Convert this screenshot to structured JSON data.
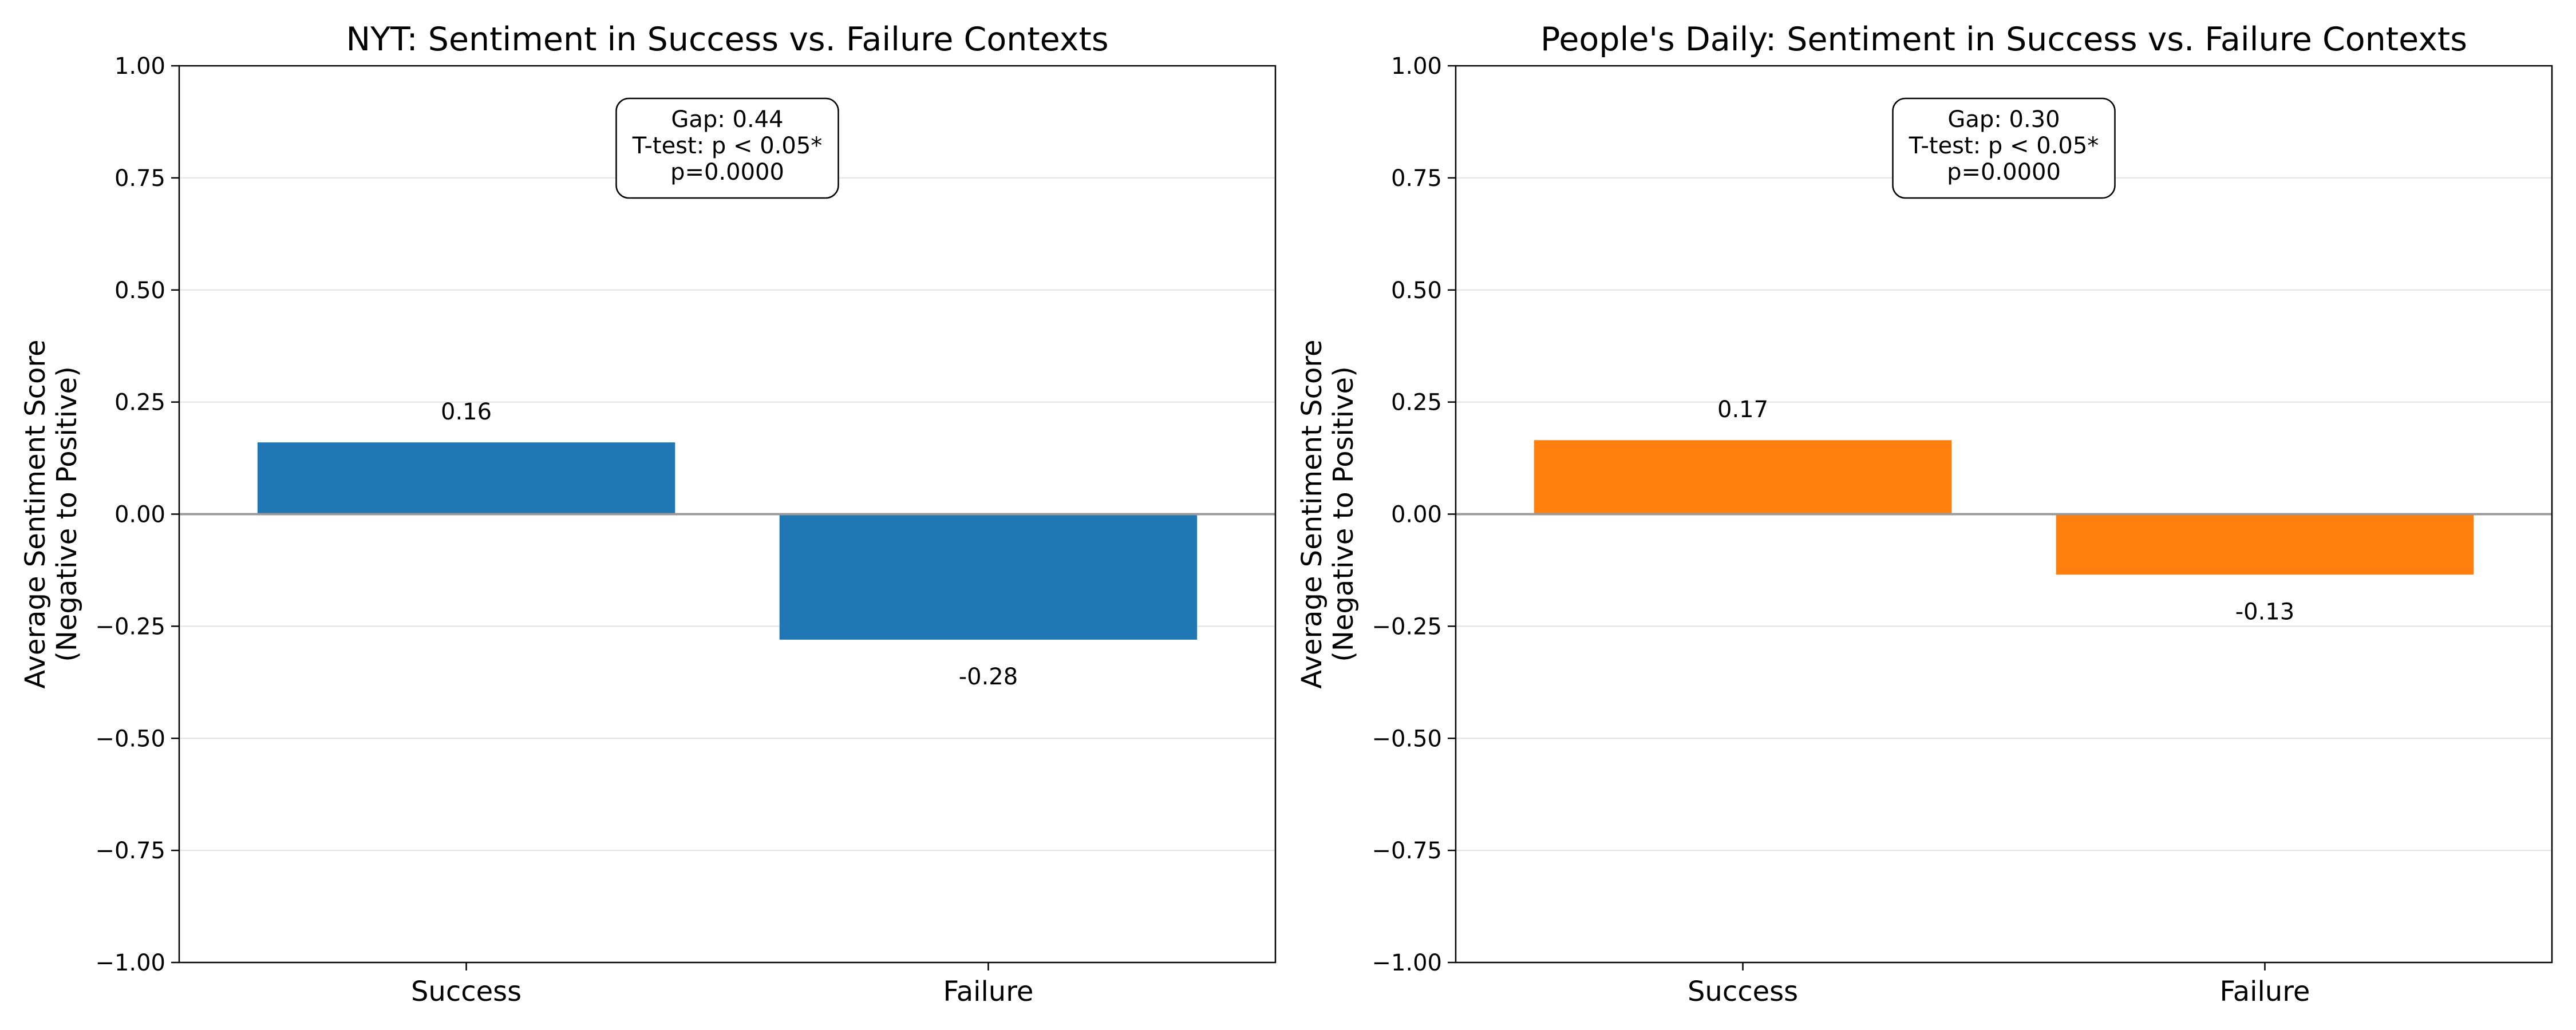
{
  "chart_data": [
    {
      "type": "bar",
      "title": "NYT: Sentiment in Success vs. Failure Contexts",
      "categories": [
        "Success",
        "Failure"
      ],
      "values": [
        0.16,
        -0.28
      ],
      "data_labels": [
        "0.16",
        "-0.28"
      ],
      "ylabel_line1": "Average Sentiment Score",
      "ylabel_line2": "(Negative to Positive)",
      "ylim": [
        -1.0,
        1.0
      ],
      "yticks": [
        -1.0,
        -0.75,
        -0.5,
        -0.25,
        0.0,
        0.25,
        0.5,
        0.75,
        1.0
      ],
      "ytick_labels": [
        "−1.00",
        "−0.75",
        "−0.50",
        "−0.25",
        "0.00",
        "0.25",
        "0.50",
        "0.75",
        "1.00"
      ],
      "grid": "y",
      "color": "#1f77b4",
      "annotation": [
        "Gap: 0.44",
        "T-test: p < 0.05*",
        "p=0.0000"
      ]
    },
    {
      "type": "bar",
      "title": "People's Daily: Sentiment in Success vs. Failure Contexts",
      "categories": [
        "Success",
        "Failure"
      ],
      "values": [
        0.165,
        -0.135
      ],
      "data_labels": [
        "0.17",
        "-0.13"
      ],
      "ylabel_line1": "Average Sentiment Score",
      "ylabel_line2": "(Negative to Positive)",
      "ylim": [
        -1.0,
        1.0
      ],
      "yticks": [
        -1.0,
        -0.75,
        -0.5,
        -0.25,
        0.0,
        0.25,
        0.5,
        0.75,
        1.0
      ],
      "ytick_labels": [
        "−1.00",
        "−0.75",
        "−0.50",
        "−0.25",
        "0.00",
        "0.25",
        "0.50",
        "0.75",
        "1.00"
      ],
      "grid": "y",
      "color": "#ff7f0e",
      "annotation": [
        "Gap: 0.30",
        "T-test: p < 0.05*",
        "p=0.0000"
      ]
    }
  ]
}
